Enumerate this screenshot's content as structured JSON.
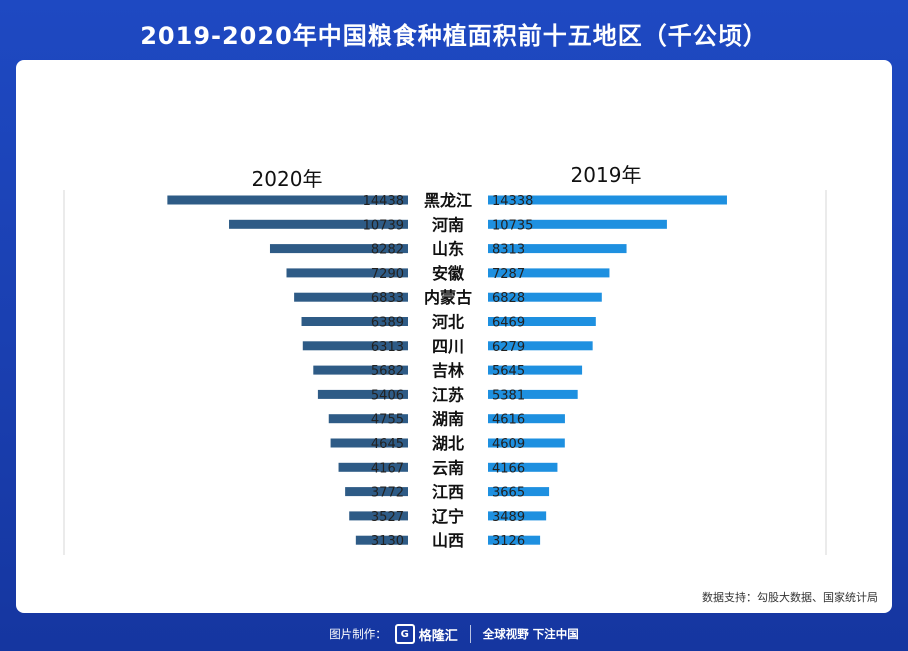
{
  "title": "2019-2020年中国粮食种植面积前十五地区（千公顷）",
  "chart_data": {
    "type": "bar",
    "layout": "butterfly",
    "categories": [
      "黑龙江",
      "河南",
      "山东",
      "安徽",
      "内蒙古",
      "河北",
      "四川",
      "吉林",
      "江苏",
      "湖南",
      "湖北",
      "云南",
      "江西",
      "辽宁",
      "山西"
    ],
    "series": [
      {
        "name": "2020年",
        "values": [
          14438,
          10739,
          8282,
          7290,
          6833,
          6389,
          6313,
          5682,
          5406,
          4755,
          4645,
          4167,
          3772,
          3527,
          3130
        ],
        "color": "#2e5b86",
        "side": "left"
      },
      {
        "name": "2019年",
        "values": [
          14338,
          10735,
          8313,
          7287,
          6828,
          6469,
          6279,
          5645,
          5381,
          4616,
          4609,
          4166,
          3665,
          3489,
          3126
        ],
        "color": "#1e90e0",
        "side": "right"
      }
    ],
    "xlim": [
      0,
      15000
    ]
  },
  "source": "数据支持：勾股大数据、国家统计局",
  "footer": {
    "made_by": "图片制作：",
    "brand": "格隆汇",
    "slogan": "全球视野 下注中国"
  }
}
